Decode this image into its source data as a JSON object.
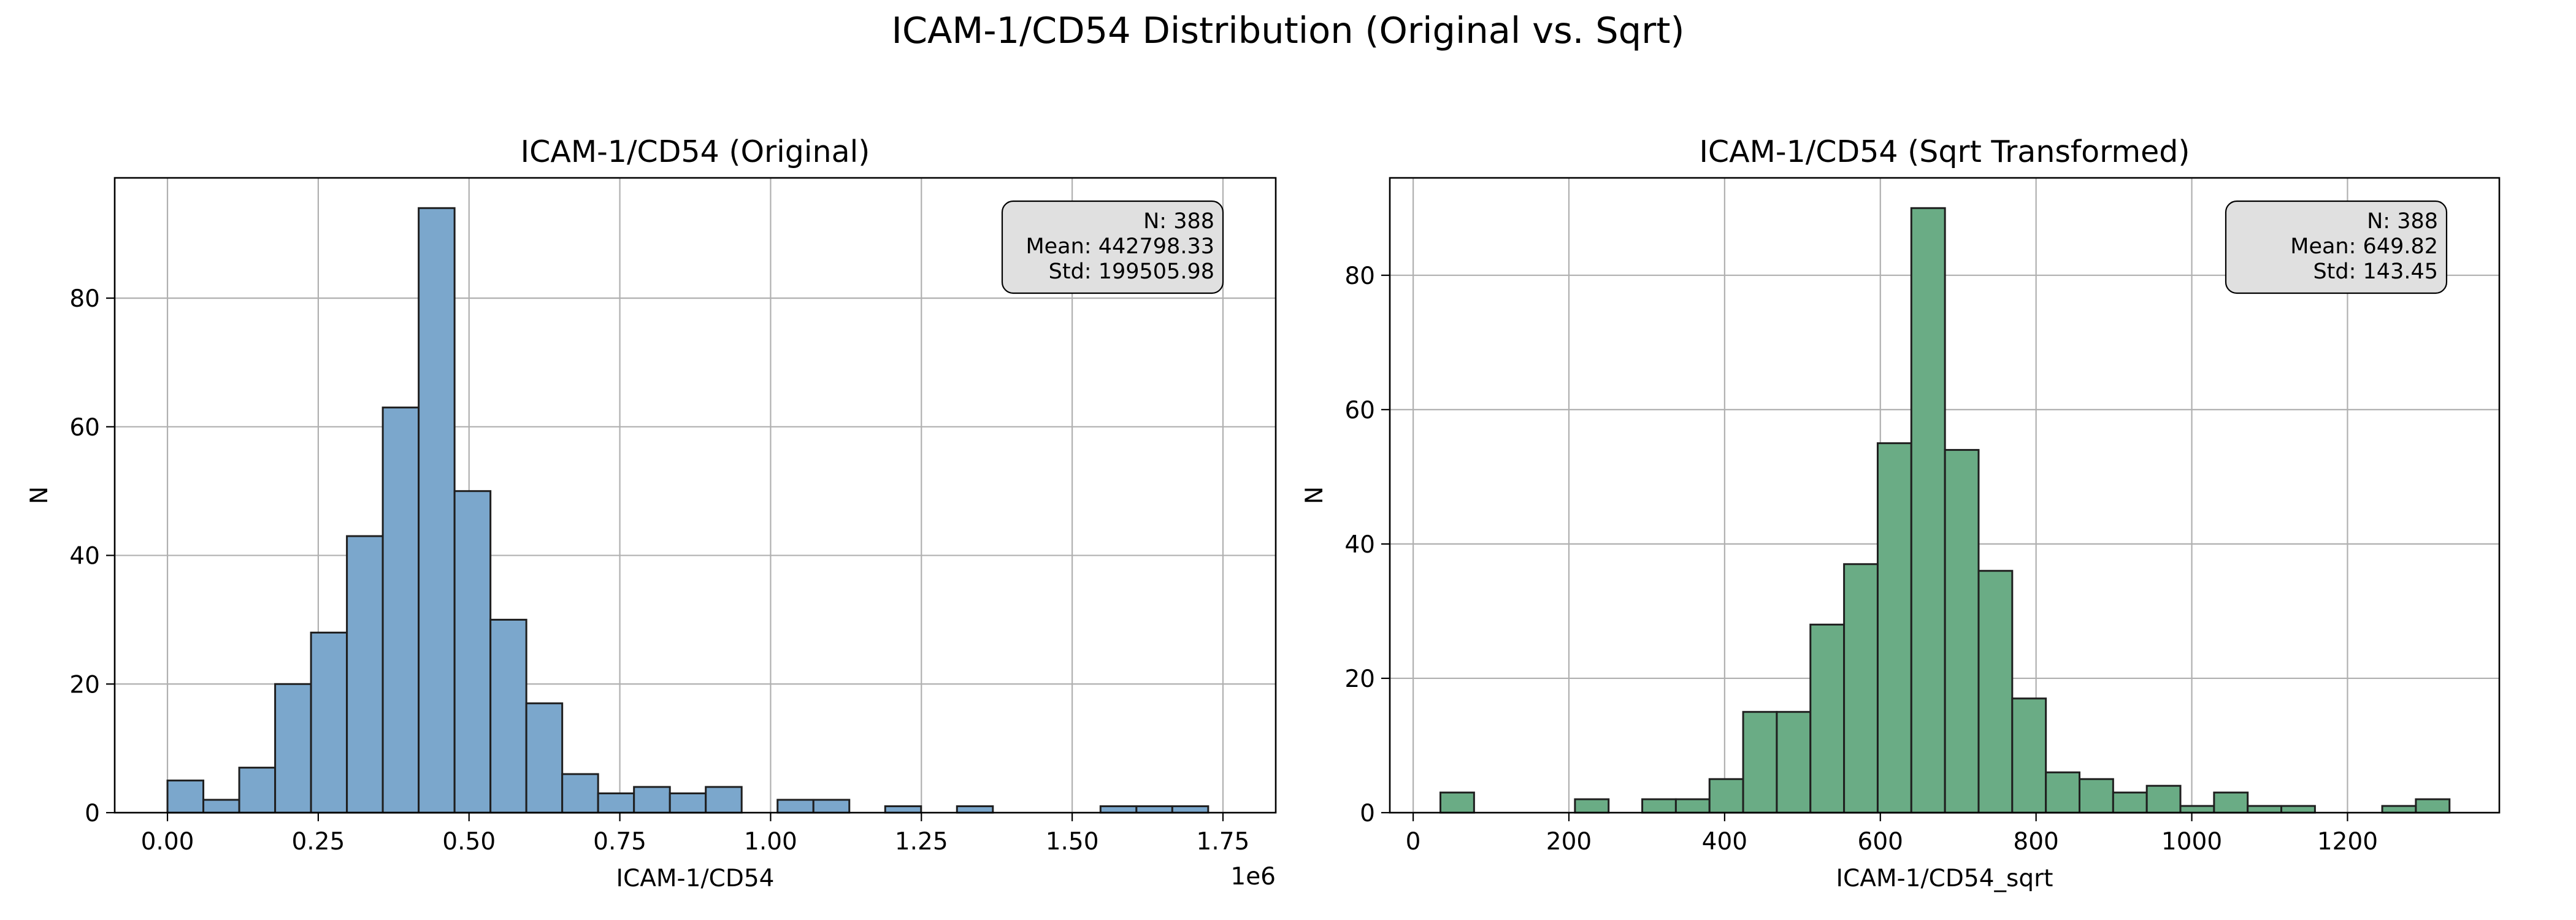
{
  "figure_title": "ICAM-1/CD54 Distribution (Original vs. Sqrt)",
  "colors": {
    "left_bars": "#7ba7cc",
    "right_bars": "#6aac85",
    "edge": "#1f1f1f",
    "grid": "#b0b0b0",
    "statbox": "#e0e0e0"
  },
  "chart_data": [
    {
      "type": "bar",
      "title": "ICAM-1/CD54 (Original)",
      "xlabel": "ICAM-1/CD54",
      "ylabel": "N",
      "x_offset_label": "1e6",
      "grid": true,
      "bin_start": 0,
      "bin_width": 0.0595,
      "values": [
        5,
        2,
        7,
        20,
        28,
        43,
        63,
        94,
        50,
        30,
        17,
        6,
        3,
        4,
        3,
        4,
        0,
        2,
        2,
        0,
        1,
        0,
        1,
        0,
        0,
        0,
        1,
        1,
        1
      ],
      "xlim": [
        -0.0875,
        1.8375
      ],
      "ylim": [
        0,
        98.7
      ],
      "xticks": [
        0,
        0.25,
        0.5,
        0.75,
        1.0,
        1.25,
        1.5,
        1.75
      ],
      "xtick_labels": [
        "0.00",
        "0.25",
        "0.50",
        "0.75",
        "1.00",
        "1.25",
        "1.50",
        "1.75"
      ],
      "yticks": [
        0,
        20,
        40,
        60,
        80
      ],
      "ytick_labels": [
        "0",
        "20",
        "40",
        "60",
        "80"
      ],
      "stats": [
        "N: 388",
        "Mean: 442798.33",
        "Std: 199505.98"
      ]
    },
    {
      "type": "bar",
      "title": "ICAM-1/CD54 (Sqrt Transformed)",
      "xlabel": "ICAM-1/CD54_sqrt",
      "ylabel": "N",
      "grid": true,
      "bin_start": 35,
      "bin_width": 43.2,
      "values": [
        3,
        0,
        0,
        0,
        2,
        0,
        2,
        2,
        5,
        15,
        15,
        28,
        37,
        55,
        90,
        54,
        36,
        17,
        6,
        5,
        3,
        4,
        1,
        3,
        1,
        1,
        0,
        0,
        1,
        2
      ],
      "xlim": [
        -30,
        1395
      ],
      "ylim": [
        0,
        94.5
      ],
      "xticks": [
        0,
        200,
        400,
        600,
        800,
        1000,
        1200
      ],
      "xtick_labels": [
        "0",
        "200",
        "400",
        "600",
        "800",
        "1000",
        "1200"
      ],
      "yticks": [
        0,
        20,
        40,
        60,
        80
      ],
      "ytick_labels": [
        "0",
        "20",
        "40",
        "60",
        "80"
      ],
      "stats": [
        "N: 388",
        "Mean: 649.82",
        "Std: 143.45"
      ]
    }
  ]
}
